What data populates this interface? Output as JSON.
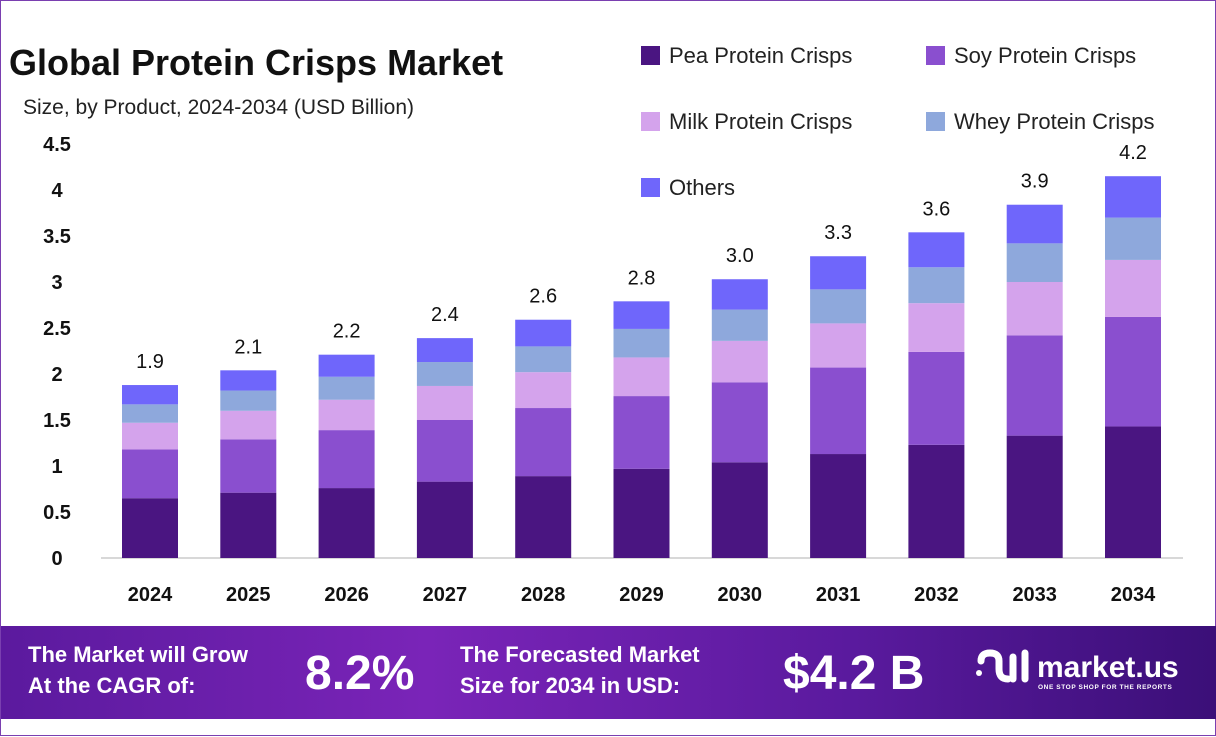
{
  "chart_data": {
    "type": "bar",
    "stacked": true,
    "title": "Global Protein Crisps Market",
    "subtitle": "Size, by Product, 2024-2034 (USD Billion)",
    "categories": [
      "2024",
      "2025",
      "2026",
      "2027",
      "2028",
      "2029",
      "2030",
      "2031",
      "2032",
      "2033",
      "2034"
    ],
    "series": [
      {
        "name": "Pea Protein Crisps",
        "color": "#4a1581",
        "values": [
          0.65,
          0.71,
          0.76,
          0.83,
          0.89,
          0.97,
          1.04,
          1.13,
          1.23,
          1.33,
          1.43
        ]
      },
      {
        "name": "Soy Protein Crisps",
        "color": "#8a4fcf",
        "values": [
          0.53,
          0.58,
          0.63,
          0.67,
          0.74,
          0.79,
          0.87,
          0.94,
          1.01,
          1.09,
          1.19
        ]
      },
      {
        "name": "Milk Protein Crisps",
        "color": "#d4a3ec",
        "values": [
          0.29,
          0.31,
          0.33,
          0.37,
          0.39,
          0.42,
          0.45,
          0.48,
          0.53,
          0.58,
          0.62
        ]
      },
      {
        "name": "Whey Protein Crisps",
        "color": "#8ea8dc",
        "values": [
          0.2,
          0.22,
          0.25,
          0.26,
          0.28,
          0.31,
          0.34,
          0.37,
          0.39,
          0.42,
          0.46
        ]
      },
      {
        "name": "Others",
        "color": "#6f66fb",
        "values": [
          0.21,
          0.22,
          0.24,
          0.26,
          0.29,
          0.3,
          0.33,
          0.36,
          0.38,
          0.42,
          0.45
        ]
      }
    ],
    "totals": [
      "1.9",
      "2.1",
      "2.2",
      "2.4",
      "2.6",
      "2.8",
      "3.0",
      "3.3",
      "3.6",
      "3.9",
      "4.2"
    ],
    "yticks": [
      "0",
      "0.5",
      "1",
      "1.5",
      "2",
      "2.5",
      "3",
      "3.5",
      "4",
      "4.5"
    ],
    "ylim": [
      0,
      4.5
    ],
    "grid": false,
    "legend_position": "top-right"
  },
  "banner": {
    "cagr_label_1": "The Market will Grow",
    "cagr_label_2": "At the CAGR of:",
    "cagr_value": "8.2%",
    "forecast_label_1": "The Forecasted Market",
    "forecast_label_2": "Size for 2034 in USD:",
    "forecast_value": "$4.2 B",
    "logo_name": "market.us",
    "logo_tagline": "ONE STOP SHOP FOR THE REPORTS"
  }
}
